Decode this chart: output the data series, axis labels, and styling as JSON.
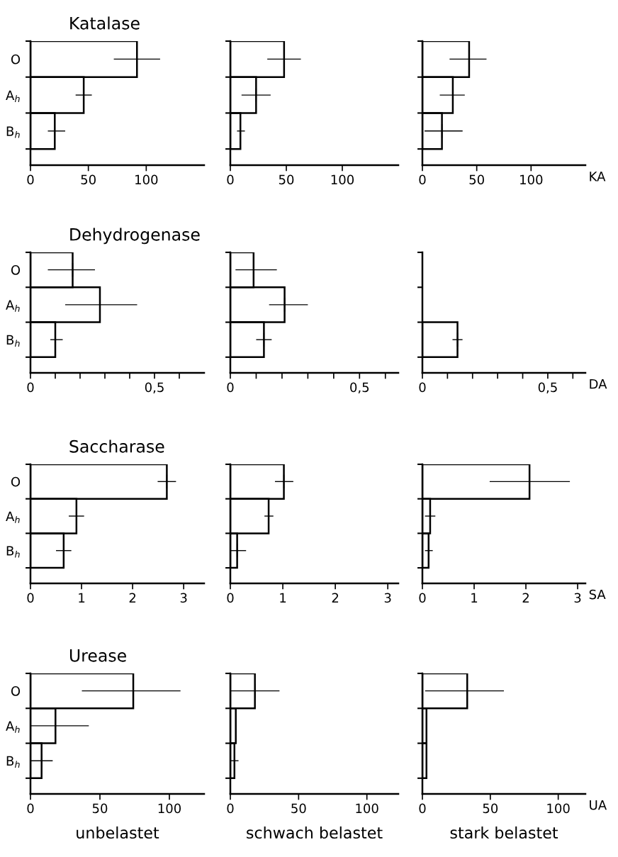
{
  "chart_data": [
    {
      "type": "bar",
      "orientation": "horizontal",
      "title": "Katalase",
      "categories": [
        "O",
        "A$_{h}$",
        "B$_{h}$"
      ],
      "values": [
        92,
        46,
        21
      ],
      "errors": [
        20,
        7,
        [
          15,
          30
        ]
      ],
      "color": "#000000",
      "xlim": [
        0,
        150
      ],
      "xticks": [
        0,
        50,
        100
      ]
    },
    {
      "type": "bar",
      "orientation": "horizontal",
      "categories": [
        null,
        null,
        null
      ],
      "values": [
        48,
        23,
        9
      ],
      "errors": [
        15,
        13,
        [
          6,
          13
        ]
      ],
      "color": "#000000",
      "xlim": [
        0,
        150
      ],
      "xticks": [
        0,
        50,
        100
      ],
      "tick_labels": "x"
    },
    {
      "type": "bar",
      "orientation": "horizontal",
      "xlabel": "KA",
      "categories": [
        null,
        null,
        null
      ],
      "values": [
        43,
        28,
        18
      ],
      "errors": [
        [
          25,
          59
        ],
        [
          16,
          39
        ],
        [
          2,
          37
        ]
      ],
      "color": "#000000",
      "xlim": [
        0,
        150
      ],
      "xticks": [
        0,
        50,
        100
      ],
      "tick_labels": "x"
    },
    {
      "type": "bar",
      "orientation": "horizontal",
      "title": "Dehydrogenase",
      "categories": [
        "O",
        "A$_{h}$",
        "B$_{h}$"
      ],
      "values": [
        0.17,
        0.28,
        0.1
      ],
      "errors": [
        [
          0.07,
          0.26
        ],
        [
          0.14,
          0.43
        ],
        [
          0.08,
          0.13
        ]
      ],
      "color": "#000000",
      "xlim": [
        0,
        0.7
      ],
      "xticks": [
        0,
        {
          "value": 0.1,
          "label": null
        },
        {
          "value": 0.2,
          "label": null
        },
        {
          "value": 0.3,
          "label": null
        },
        {
          "value": 0.4,
          "label": null
        },
        {
          "value": 0.5,
          "label": "0,5"
        },
        {
          "value": 0.6,
          "label": null
        }
      ]
    },
    {
      "type": "bar",
      "orientation": "horizontal",
      "categories": [
        null,
        null,
        null
      ],
      "values": [
        0.09,
        0.21,
        0.13
      ],
      "errors": [
        [
          0.02,
          0.18
        ],
        [
          0.15,
          0.3
        ],
        [
          0.1,
          0.16
        ]
      ],
      "color": "#000000",
      "xlim": [
        0,
        0.65
      ],
      "xticks": [
        0,
        {
          "value": 0.1,
          "label": null
        },
        {
          "value": 0.2,
          "label": null
        },
        {
          "value": 0.3,
          "label": null
        },
        {
          "value": 0.4,
          "label": null
        },
        {
          "value": 0.5,
          "label": "0,5"
        },
        {
          "value": 0.6,
          "label": null
        }
      ],
      "tick_labels": "x"
    },
    {
      "type": "bar",
      "orientation": "horizontal",
      "xlabel": "DA",
      "categories": [
        null,
        null,
        null
      ],
      "values": [
        null,
        null,
        0.14
      ],
      "errors": [
        null,
        null,
        0.02
      ],
      "color": "#000000",
      "xlim": [
        0,
        0.65
      ],
      "xticks": [
        0,
        {
          "value": 0.1,
          "label": null
        },
        {
          "value": 0.2,
          "label": null
        },
        {
          "value": 0.3,
          "label": null
        },
        {
          "value": 0.4,
          "label": null
        },
        {
          "value": 0.5,
          "label": "0,5"
        },
        {
          "value": 0.6,
          "label": null
        }
      ],
      "tick_labels": "x"
    },
    {
      "type": "bar",
      "orientation": "horizontal",
      "title": "Saccharase",
      "categories": [
        "O",
        "A$_{h}$",
        "B$_{h}$"
      ],
      "values": [
        2.67,
        0.9,
        0.65
      ],
      "errors": [
        0.18,
        0.15,
        0.15
      ],
      "color": "#000000",
      "xlim": [
        0,
        3.4
      ],
      "xticks": [
        0,
        1,
        2,
        3
      ]
    },
    {
      "type": "bar",
      "orientation": "horizontal",
      "categories": [
        null,
        null,
        null
      ],
      "values": [
        1.02,
        0.73,
        0.13
      ],
      "errors": [
        [
          0.85,
          1.2
        ],
        [
          0.65,
          0.82
        ],
        [
          0,
          0.3
        ]
      ],
      "color": "#000000",
      "xlim": [
        0,
        3.2
      ],
      "xticks": [
        0,
        1,
        2,
        3
      ],
      "tick_labels": "x"
    },
    {
      "type": "bar",
      "orientation": "horizontal",
      "xlabel": "SA",
      "categories": [
        null,
        null,
        null
      ],
      "values": [
        2.07,
        0.15,
        0.12
      ],
      "errors": [
        [
          1.3,
          2.85
        ],
        [
          0.05,
          0.25
        ],
        [
          0.05,
          0.2
        ]
      ],
      "color": "#000000",
      "xlim": [
        0,
        3.15
      ],
      "xticks": [
        0,
        1,
        2,
        3
      ],
      "tick_labels": "x"
    },
    {
      "type": "bar",
      "orientation": "horizontal",
      "title": "Urease",
      "categories": [
        "O",
        "A$_{h}$",
        "B$_{h}$"
      ],
      "values": [
        74,
        18,
        8
      ],
      "errors": [
        [
          37,
          108
        ],
        [
          0,
          42
        ],
        [
          0,
          16
        ]
      ],
      "color": "#000000",
      "xlim": [
        0,
        125
      ],
      "xticks": [
        0,
        50,
        100
      ],
      "annotations": [
        "unbelastet"
      ]
    },
    {
      "type": "bar",
      "orientation": "horizontal",
      "categories": [
        null,
        null,
        null
      ],
      "values": [
        18,
        4,
        3
      ],
      "errors": [
        [
          0,
          36
        ],
        null,
        [
          0,
          6
        ]
      ],
      "color": "#000000",
      "xlim": [
        0,
        123
      ],
      "xticks": [
        0,
        50,
        100
      ],
      "tick_labels": "x",
      "annotations": [
        "schwach belastet"
      ]
    },
    {
      "type": "bar",
      "orientation": "horizontal",
      "xlabel": "UA",
      "categories": [
        null,
        null,
        null
      ],
      "values": [
        33,
        3,
        3
      ],
      "errors": [
        [
          2,
          60
        ],
        null,
        null
      ],
      "color": "#000000",
      "xlim": [
        0,
        120
      ],
      "xticks": [
        0,
        50,
        100
      ],
      "tick_labels": "x",
      "annotations": [
        "stark belastet"
      ]
    }
  ]
}
